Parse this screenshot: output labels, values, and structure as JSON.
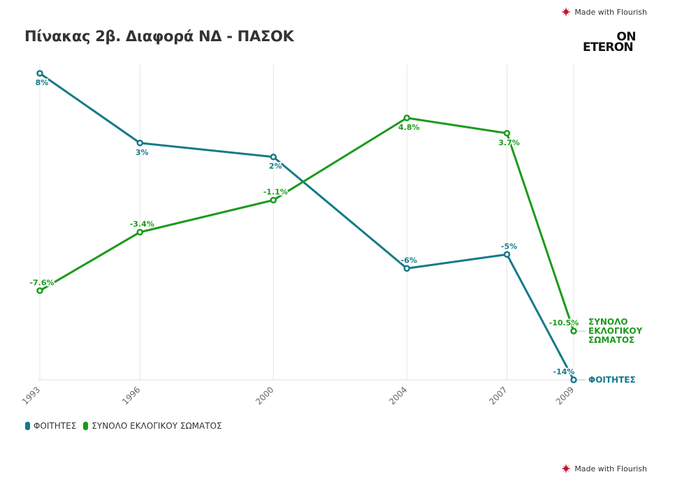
{
  "branding": {
    "made_with": "Made with Flourish"
  },
  "header": {
    "title": "Πίνακας 2β. Διαφορά ΝΔ - ΠΑΣΟΚ"
  },
  "logo": {
    "line1": "ON",
    "line2": "ETERON"
  },
  "colors": {
    "series1": "#157a8a",
    "series2": "#1b9a1b",
    "grid": "#e6e6e6",
    "flourish": "#c8102e"
  },
  "chart_data": {
    "type": "line",
    "x": [
      "1993",
      "1996",
      "2000",
      "2004",
      "2007",
      "2009"
    ],
    "x_values": [
      1993,
      1996,
      2000,
      2004,
      2007,
      2009
    ],
    "xlim": [
      1993,
      2009
    ],
    "ylim": [
      -14,
      8
    ],
    "grid": "vertical",
    "legend_position": "bottom-left",
    "series": [
      {
        "name": "ΦΟΙΤΗΤΕΣ",
        "values": [
          8,
          3,
          2,
          -6,
          -5,
          -14
        ],
        "labels": [
          "8%",
          "3%",
          "2%",
          "-6%",
          "-5%",
          "-14%"
        ],
        "end_label": [
          "ΦΟΙΤΗΤΕΣ"
        ]
      },
      {
        "name": "ΣΥΝΟΛΟ ΕΚΛΟΓΙΚΟΥ ΣΩΜΑΤΟΣ",
        "values": [
          -7.6,
          -3.4,
          -1.1,
          4.8,
          3.7,
          -10.5
        ],
        "labels": [
          "-7.6%",
          "-3.4%",
          "-1.1%",
          "4.8%",
          "3.7%",
          "-10.5%"
        ],
        "end_label": [
          "ΣΥΝΟΛΟ",
          "ΕΚΛΟΓΙΚΟΥ",
          "ΣΩΜΑΤΟΣ"
        ]
      }
    ]
  }
}
